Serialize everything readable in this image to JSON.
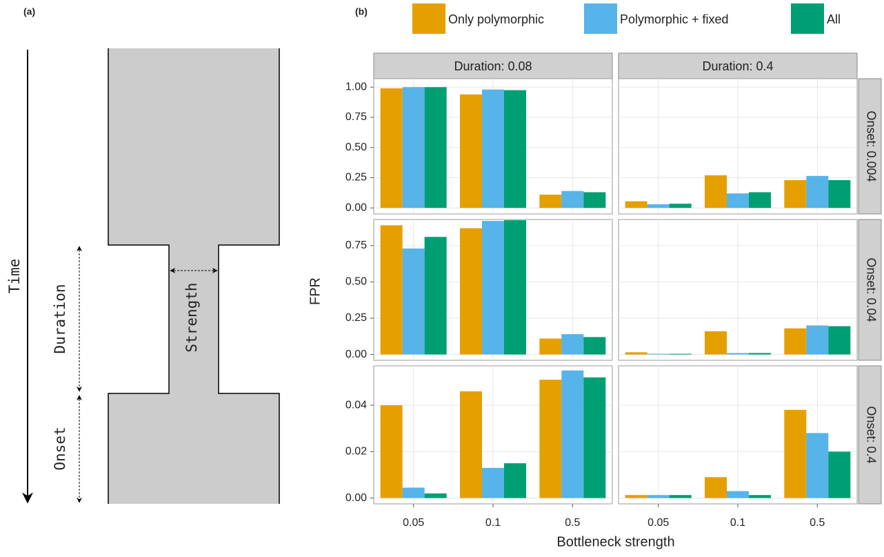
{
  "panel_a": {
    "label": "(a)",
    "time": "Time",
    "duration": "Duration",
    "strength": "Strength",
    "onset": "Onset"
  },
  "chart_data": {
    "type": "bar",
    "panel_label": "(b)",
    "x_label": "Bottleneck strength",
    "y_label": "FPR",
    "categories": [
      "0.05",
      "0.1",
      "0.5"
    ],
    "series": [
      {
        "name": "Only polymorphic",
        "color": "#E69F00"
      },
      {
        "name": "Polymorphic + fixed",
        "color": "#56B4E9"
      },
      {
        "name": "All",
        "color": "#009E73"
      }
    ],
    "columns": [
      "Duration: 0.08",
      "Duration: 0.4"
    ],
    "rows": [
      {
        "label": "Onset: 0.004",
        "ylim": [
          -0.05,
          1.07
        ],
        "yticks": [
          {
            "value": 0,
            "label": "0.00"
          },
          {
            "value": 0.25,
            "label": "0.25"
          },
          {
            "value": 0.5,
            "label": "0.50"
          },
          {
            "value": 0.75,
            "label": "0.75"
          },
          {
            "value": 1,
            "label": "1.00"
          }
        ],
        "panels": [
          [
            [
              0.99,
              0.94,
              0.11
            ],
            [
              1.0,
              0.98,
              0.14
            ],
            [
              1.0,
              0.975,
              0.13
            ]
          ],
          [
            [
              0.055,
              0.27,
              0.23
            ],
            [
              0.03,
              0.12,
              0.265
            ],
            [
              0.035,
              0.13,
              0.23
            ]
          ]
        ]
      },
      {
        "label": "Onset: 0.04",
        "ylim": [
          -0.04,
          0.93
        ],
        "yticks": [
          {
            "value": 0,
            "label": "0.00"
          },
          {
            "value": 0.25,
            "label": "0.25"
          },
          {
            "value": 0.5,
            "label": "0.50"
          },
          {
            "value": 0.75,
            "label": "0.75"
          }
        ],
        "panels": [
          [
            [
              0.89,
              0.87,
              0.11
            ],
            [
              0.73,
              0.92,
              0.14
            ],
            [
              0.81,
              0.925,
              0.12
            ]
          ],
          [
            [
              0.015,
              0.16,
              0.18
            ],
            [
              0.005,
              0.01,
              0.2
            ],
            [
              0.005,
              0.01,
              0.195
            ]
          ]
        ]
      },
      {
        "label": "Onset: 0.4",
        "ylim": [
          -0.0025,
          0.057
        ],
        "yticks": [
          {
            "value": 0,
            "label": "0.00"
          },
          {
            "value": 0.02,
            "label": "0.02"
          },
          {
            "value": 0.04,
            "label": "0.04"
          }
        ],
        "panels": [
          [
            [
              0.04,
              0.046,
              0.051
            ],
            [
              0.0045,
              0.013,
              0.055
            ],
            [
              0.002,
              0.015,
              0.052
            ]
          ],
          [
            [
              0.0013,
              0.009,
              0.038
            ],
            [
              0.0013,
              0.003,
              0.028
            ],
            [
              0.0013,
              0.0013,
              0.02
            ]
          ]
        ]
      }
    ]
  }
}
